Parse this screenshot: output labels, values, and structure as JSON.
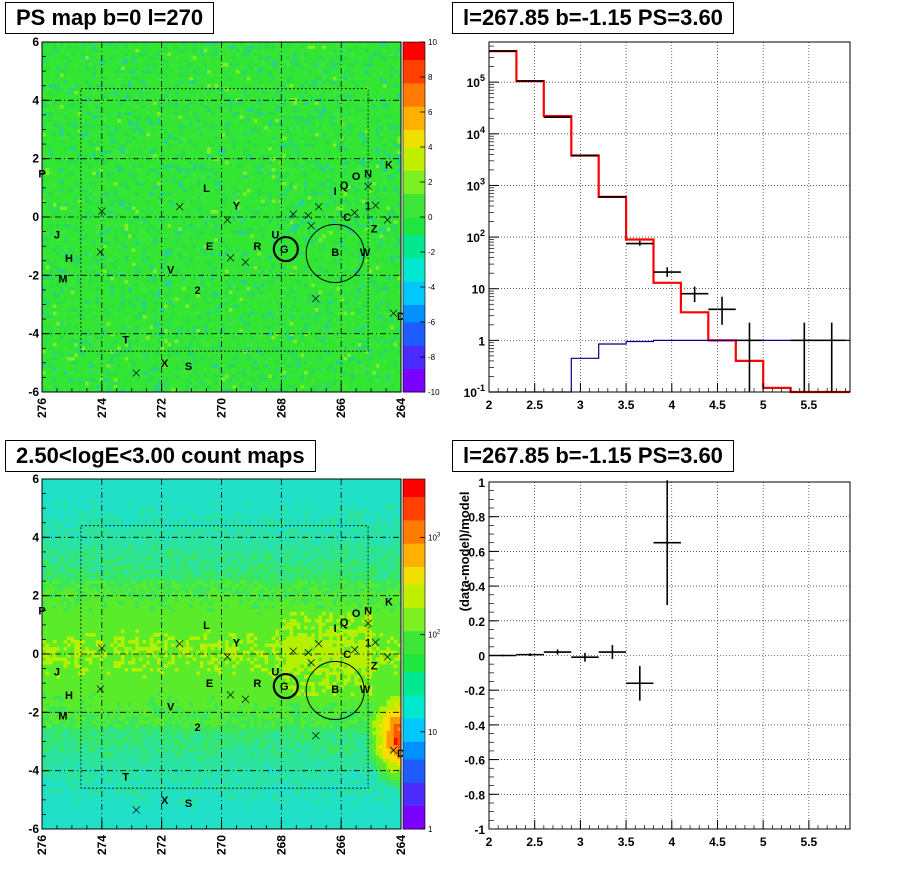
{
  "titles": {
    "top_left": "PS map b=0 l=270",
    "top_right": "l=267.85 b=-1.15 PS=3.60",
    "bottom_left": "2.50<logE<3.00 count maps",
    "bottom_right": "l=267.85 b=-1.15 PS=3.60"
  },
  "colors": {
    "model_curve": "#ff0000",
    "data_points": "#000000",
    "background_curve": "#00008b",
    "map_base": "#33e633",
    "grid": "#000000"
  },
  "chart_data": [
    {
      "type": "heatmap",
      "panel": "top_left",
      "title": "PS map b=0 l=270",
      "xlim": [
        276,
        264
      ],
      "ylim": [
        -6,
        6
      ],
      "x_ticks": [
        "276",
        "274",
        "272",
        "270",
        "268",
        "266",
        "264"
      ],
      "y_ticks": [
        "-6",
        "-4",
        "-2",
        "0",
        "2",
        "4",
        "6"
      ],
      "colorbar": {
        "range": [
          -10,
          10
        ],
        "scale": "linear",
        "ticks": [
          "-10",
          "-8",
          "-6",
          "-4",
          "-2",
          "0",
          "2",
          "4",
          "6",
          "8",
          "10"
        ]
      },
      "grid": true,
      "source_labels": [
        {
          "text": "P",
          "l": 276.0,
          "b": 1.5
        },
        {
          "text": "J",
          "l": 275.5,
          "b": -0.6
        },
        {
          "text": "H",
          "l": 275.1,
          "b": -1.4
        },
        {
          "text": "M",
          "l": 275.3,
          "b": -2.1
        },
        {
          "text": "L",
          "l": 270.5,
          "b": 1.0
        },
        {
          "text": "Y",
          "l": 269.5,
          "b": 0.4
        },
        {
          "text": "E",
          "l": 270.4,
          "b": -1.0
        },
        {
          "text": "V",
          "l": 271.7,
          "b": -1.8
        },
        {
          "text": "2",
          "l": 270.8,
          "b": -2.5
        },
        {
          "text": "R",
          "l": 268.8,
          "b": -1.0
        },
        {
          "text": "U",
          "l": 268.2,
          "b": -0.6
        },
        {
          "text": "G",
          "l": 267.9,
          "b": -1.1
        },
        {
          "text": "B",
          "l": 266.2,
          "b": -1.2
        },
        {
          "text": "W",
          "l": 265.2,
          "b": -1.2
        },
        {
          "text": "I",
          "l": 266.2,
          "b": 0.9
        },
        {
          "text": "Q",
          "l": 265.9,
          "b": 1.1
        },
        {
          "text": "O",
          "l": 265.5,
          "b": 1.4
        },
        {
          "text": "N",
          "l": 265.1,
          "b": 1.5
        },
        {
          "text": "K",
          "l": 264.4,
          "b": 1.8
        },
        {
          "text": "C",
          "l": 265.8,
          "b": 0.0
        },
        {
          "text": "1",
          "l": 265.1,
          "b": 0.4
        },
        {
          "text": "Z",
          "l": 264.9,
          "b": -0.4
        },
        {
          "text": "T",
          "l": 273.2,
          "b": -4.2
        },
        {
          "text": "X",
          "l": 271.9,
          "b": -5.0
        },
        {
          "text": "S",
          "l": 271.1,
          "b": -5.1
        },
        {
          "text": "D",
          "l": 264.0,
          "b": -3.4
        }
      ]
    },
    {
      "type": "line",
      "panel": "top_right",
      "title": "l=267.85 b=-1.15 PS=3.60",
      "xlim": [
        2,
        5.95
      ],
      "ylim": [
        0.1,
        600000
      ],
      "y_scale": "log",
      "x_ticks": [
        "2",
        "2.5",
        "3",
        "3.5",
        "4",
        "4.5",
        "5",
        "5.5"
      ],
      "y_ticks": [
        "10^-1",
        "1",
        "10",
        "10^2",
        "10^3",
        "10^4",
        "10^5"
      ],
      "grid": true,
      "series": [
        {
          "kind": "step",
          "color": "#ff0000",
          "edges": [
            2.0,
            2.3,
            2.6,
            2.9,
            3.2,
            3.5,
            3.8,
            4.1,
            4.4,
            4.7,
            5.0,
            5.3,
            5.95
          ],
          "values": [
            400000,
            105000,
            22000,
            3800,
            600,
            90,
            13,
            3.5,
            1.0,
            0.4,
            0.12,
            0.1
          ]
        },
        {
          "kind": "step",
          "color": "#00008b",
          "edges": [
            2.0,
            2.3,
            2.6,
            2.9,
            3.2,
            3.5,
            3.8,
            4.1,
            4.4,
            4.7,
            5.0,
            5.3,
            5.95
          ],
          "values": [
            0.05,
            0.1,
            0.1,
            0.45,
            0.85,
            0.95,
            1.0,
            1.0,
            1.0,
            1.0,
            1.0,
            1.0
          ]
        },
        {
          "kind": "errorbars",
          "color": "#000000",
          "points": [
            {
              "x": 2.15,
              "xerr": 0.15,
              "y": 400000,
              "ylo": 400000,
              "yhi": 400000
            },
            {
              "x": 2.45,
              "xerr": 0.15,
              "y": 105000,
              "ylo": 105000,
              "yhi": 105000
            },
            {
              "x": 2.75,
              "xerr": 0.15,
              "y": 21000,
              "ylo": 21000,
              "yhi": 21000
            },
            {
              "x": 3.05,
              "xerr": 0.15,
              "y": 3800,
              "ylo": 3800,
              "yhi": 3800
            },
            {
              "x": 3.35,
              "xerr": 0.15,
              "y": 600,
              "ylo": 600,
              "yhi": 600
            },
            {
              "x": 3.65,
              "xerr": 0.15,
              "y": 75,
              "ylo": 68,
              "yhi": 85
            },
            {
              "x": 3.95,
              "xerr": 0.15,
              "y": 21,
              "ylo": 17,
              "yhi": 26
            },
            {
              "x": 4.25,
              "xerr": 0.15,
              "y": 8,
              "ylo": 5.5,
              "yhi": 11
            },
            {
              "x": 4.55,
              "xerr": 0.15,
              "y": 4,
              "ylo": 2,
              "yhi": 7
            },
            {
              "x": 4.85,
              "xerr": 0.15,
              "y": 1,
              "ylo": 0.1,
              "yhi": 2.2
            },
            {
              "x": 5.45,
              "xerr": 0.15,
              "y": 1,
              "ylo": 0.1,
              "yhi": 2.2
            },
            {
              "x": 5.75,
              "xerr": 0.15,
              "y": 1,
              "ylo": 0.1,
              "yhi": 2.2
            }
          ]
        }
      ]
    },
    {
      "type": "heatmap",
      "panel": "bottom_left",
      "title": "2.50<logE<3.00 count maps",
      "xlim": [
        276,
        264
      ],
      "ylim": [
        -6,
        6
      ],
      "x_ticks": [
        "276",
        "274",
        "272",
        "270",
        "268",
        "266",
        "264"
      ],
      "y_ticks": [
        "-6",
        "-4",
        "-2",
        "0",
        "2",
        "4",
        "6"
      ],
      "colorbar": {
        "range": [
          1,
          4000
        ],
        "scale": "log",
        "ticks": [
          "1",
          "10",
          "10^2",
          "10^3"
        ]
      },
      "grid": true
    },
    {
      "type": "scatter",
      "panel": "bottom_right",
      "title": "l=267.85 b=-1.15 PS=3.60",
      "ylabel": "(data-model)/model",
      "xlim": [
        2,
        5.95
      ],
      "ylim": [
        -1,
        1
      ],
      "x_ticks": [
        "2",
        "2.5",
        "3",
        "3.5",
        "4",
        "4.5",
        "5",
        "5.5"
      ],
      "y_ticks": [
        "-1",
        "-0.8",
        "-0.6",
        "-0.4",
        "-0.2",
        "0",
        "0.2",
        "0.4",
        "0.6",
        "0.8",
        "1"
      ],
      "grid": true,
      "points": [
        {
          "x": 2.15,
          "xerr": 0.15,
          "y": 0.0,
          "yerr": 0.005
        },
        {
          "x": 2.45,
          "xerr": 0.15,
          "y": 0.005,
          "yerr": 0.008
        },
        {
          "x": 2.75,
          "xerr": 0.15,
          "y": 0.02,
          "yerr": 0.015
        },
        {
          "x": 3.05,
          "xerr": 0.15,
          "y": -0.01,
          "yerr": 0.025
        },
        {
          "x": 3.35,
          "xerr": 0.15,
          "y": 0.02,
          "yerr": 0.04
        },
        {
          "x": 3.65,
          "xerr": 0.15,
          "y": -0.16,
          "yerr": 0.1
        },
        {
          "x": 3.95,
          "xerr": 0.15,
          "y": 0.65,
          "yerr": 0.36
        }
      ]
    }
  ]
}
